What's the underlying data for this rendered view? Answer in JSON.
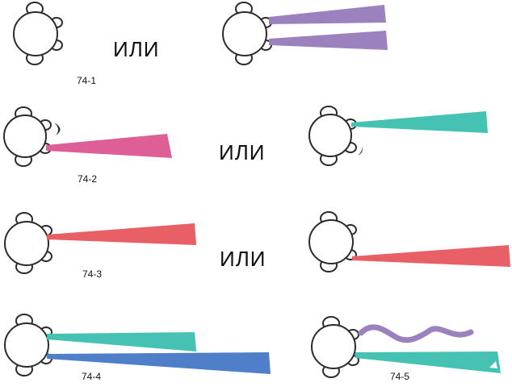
{
  "labels": {
    "fig1": "74-1",
    "fig2": "74-2",
    "fig3": "74-3",
    "fig4": "74-4",
    "fig5": "74-5",
    "or1": "ИЛИ",
    "or2": "ИЛИ",
    "or3": "ИЛИ"
  },
  "colors": {
    "outline": "#2b2b2b",
    "purple": "#9b82bf",
    "pink": "#de5f96",
    "teal": "#45c2b1",
    "red": "#e86065",
    "blue": "#4f7fc8",
    "background": "#ffffff"
  }
}
